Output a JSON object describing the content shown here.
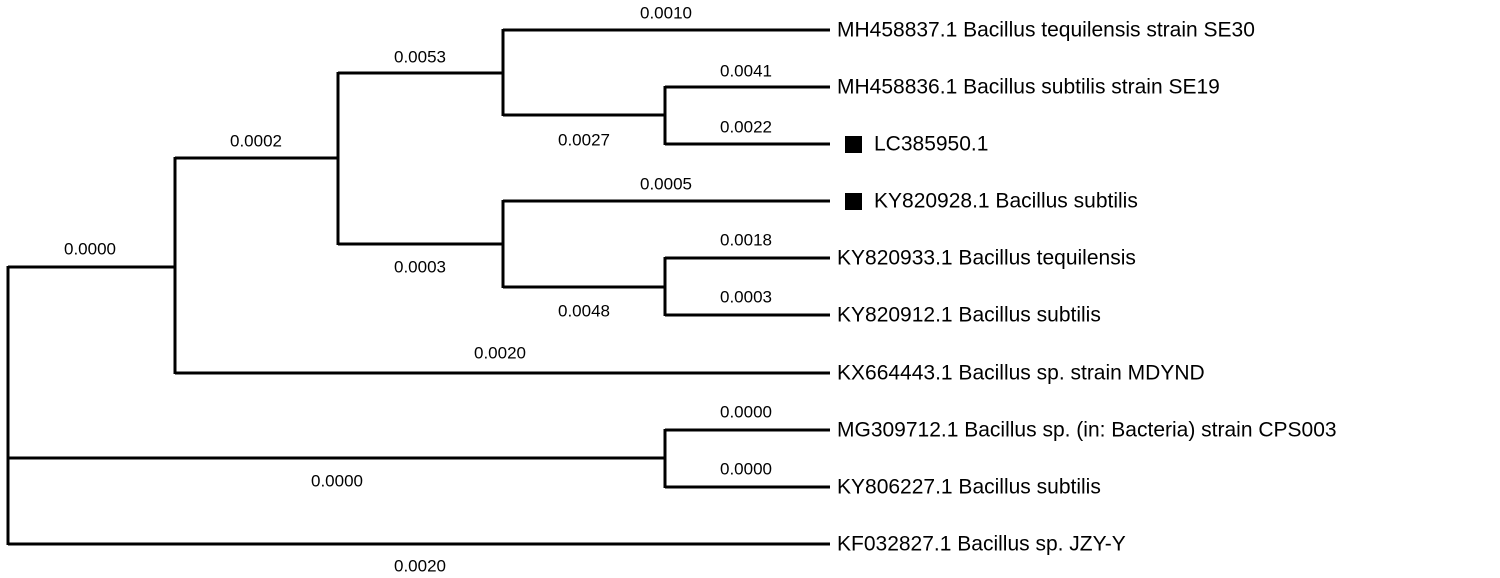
{
  "leaves": [
    {
      "label": "MH458837.1 Bacillus tequilensis strain SE30"
    },
    {
      "label": "MH458836.1 Bacillus subtilis strain SE19"
    },
    {
      "label": "LC385950.1"
    },
    {
      "label": "KY820928.1 Bacillus subtilis"
    },
    {
      "label": "KY820933.1 Bacillus tequilensis"
    },
    {
      "label": "KY820912.1 Bacillus subtilis"
    },
    {
      "label": "KX664443.1 Bacillus sp. strain MDYND"
    },
    {
      "label": "MG309712.1 Bacillus sp. (in: Bacteria) strain CPS003"
    },
    {
      "label": "KY806227.1 Bacillus subtilis"
    },
    {
      "label": "KF032827.1 Bacillus sp. JZY-Y"
    }
  ],
  "branches": [
    {
      "label": "0.0010"
    },
    {
      "label": "0.0053"
    },
    {
      "label": "0.0041"
    },
    {
      "label": "0.0027"
    },
    {
      "label": "0.0022"
    },
    {
      "label": "0.0002"
    },
    {
      "label": "0.0005"
    },
    {
      "label": "0.0018"
    },
    {
      "label": "0.0000"
    },
    {
      "label": "0.0003"
    },
    {
      "label": "0.0003"
    },
    {
      "label": "0.0048"
    },
    {
      "label": "0.0020"
    },
    {
      "label": "0.0000"
    },
    {
      "label": "0.0000"
    },
    {
      "label": "0.0000"
    },
    {
      "label": "0.0020"
    }
  ]
}
